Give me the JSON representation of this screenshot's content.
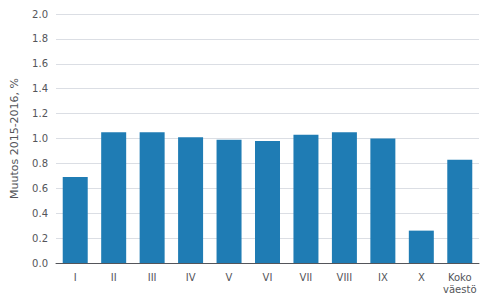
{
  "chart_data": {
    "type": "bar",
    "categories": [
      "I",
      "II",
      "III",
      "IV",
      "V",
      "VI",
      "VII",
      "VIII",
      "IX",
      "X",
      "Koko\nväestö"
    ],
    "values": [
      0.69,
      1.05,
      1.05,
      1.01,
      0.99,
      0.98,
      1.03,
      1.05,
      1.0,
      0.26,
      0.83
    ],
    "color": "#1f7cb4",
    "ylabel": "Muutos 2015-2016, %",
    "ylim": [
      0.0,
      2.0
    ],
    "yticks": [
      {
        "value": 0.0,
        "label": "0.0"
      },
      0.2,
      0.4,
      0.6,
      0.8,
      {
        "value": 1.0,
        "label": "1.0"
      },
      1.2,
      1.4,
      1.6,
      1.8,
      {
        "value": 2.0,
        "label": "2.0"
      }
    ],
    "grid": true
  }
}
